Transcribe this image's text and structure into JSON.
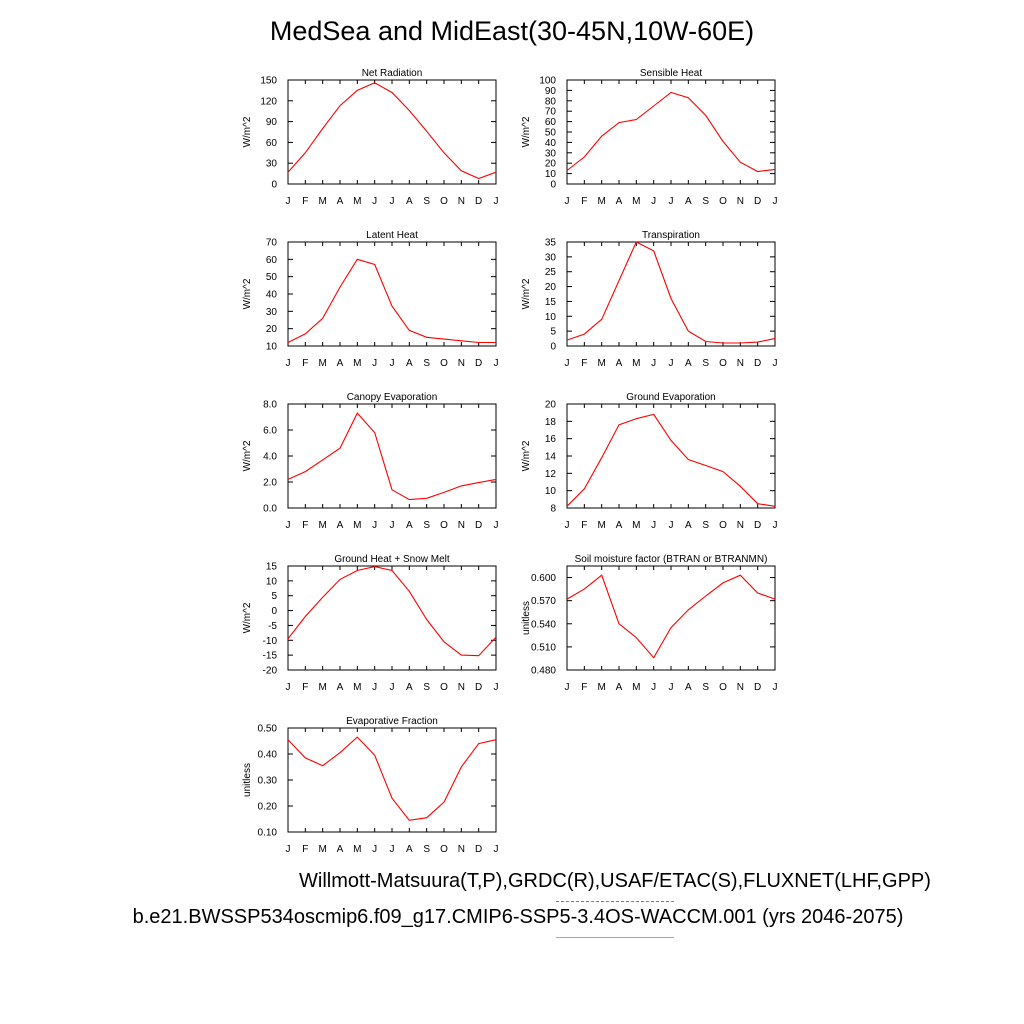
{
  "title": "MedSea and MidEast(30-45N,10W-60E)",
  "footer": {
    "line1": "Willmott-Matsuura(T,P),GRDC(R),USAF/ETAC(S),FLUXNET(LHF,GPP)",
    "line2": "b.e21.BWSSP534oscmip6.f09_g17.CMIP6-SSP5-3.4OS-WACCM.001 (yrs 2046-2075)"
  },
  "colors": {
    "series": "#ff0000",
    "legend_obs": "#7070ff",
    "legend_model": "#ff8080"
  },
  "chart_data": [
    {
      "type": "line",
      "title": "Net Radiation",
      "ylabel": "W/m^2",
      "categories": [
        "J",
        "F",
        "M",
        "A",
        "M",
        "J",
        "J",
        "A",
        "S",
        "O",
        "N",
        "D",
        "J"
      ],
      "ylim": [
        0,
        150
      ],
      "yticks": [
        0,
        30,
        60,
        90,
        120,
        150
      ],
      "yticklabels": [
        "0",
        "30",
        "60",
        "90",
        "120",
        "150"
      ],
      "values": [
        17,
        45,
        80,
        113,
        135,
        146,
        132,
        106,
        76,
        45,
        19,
        8,
        17
      ]
    },
    {
      "type": "line",
      "title": "Sensible Heat",
      "ylabel": "W/m^2",
      "categories": [
        "J",
        "F",
        "M",
        "A",
        "M",
        "J",
        "J",
        "A",
        "S",
        "O",
        "N",
        "D",
        "J"
      ],
      "ylim": [
        0,
        100
      ],
      "yticks": [
        0,
        10,
        20,
        30,
        40,
        50,
        60,
        70,
        80,
        90,
        100
      ],
      "yticklabels": [
        "0",
        "10",
        "20",
        "30",
        "40",
        "50",
        "60",
        "70",
        "80",
        "90",
        "100"
      ],
      "values": [
        13,
        26,
        46,
        59,
        62,
        75,
        88,
        83,
        66,
        41,
        21,
        12,
        14
      ]
    },
    {
      "type": "line",
      "title": "Latent Heat",
      "ylabel": "W/m^2",
      "categories": [
        "J",
        "F",
        "M",
        "A",
        "M",
        "J",
        "J",
        "A",
        "S",
        "O",
        "N",
        "D",
        "J"
      ],
      "ylim": [
        10,
        70
      ],
      "yticks": [
        10,
        20,
        30,
        40,
        50,
        60,
        70
      ],
      "yticklabels": [
        "10",
        "20",
        "30",
        "40",
        "50",
        "60",
        "70"
      ],
      "values": [
        12,
        17,
        26,
        44,
        60,
        57,
        33,
        19,
        15,
        14,
        13,
        12,
        12
      ]
    },
    {
      "type": "line",
      "title": "Transpiration",
      "ylabel": "W/m^2",
      "categories": [
        "J",
        "F",
        "M",
        "A",
        "M",
        "J",
        "J",
        "A",
        "S",
        "O",
        "N",
        "D",
        "J"
      ],
      "ylim": [
        0,
        35
      ],
      "yticks": [
        0,
        5,
        10,
        15,
        20,
        25,
        30,
        35
      ],
      "yticklabels": [
        "0",
        "5",
        "10",
        "15",
        "20",
        "25",
        "30",
        "35"
      ],
      "values": [
        2,
        4,
        9,
        22,
        35,
        32,
        16,
        5,
        1.5,
        1,
        1,
        1.3,
        2.5
      ]
    },
    {
      "type": "line",
      "title": "Canopy Evaporation",
      "ylabel": "W/m^2",
      "categories": [
        "J",
        "F",
        "M",
        "A",
        "M",
        "J",
        "J",
        "A",
        "S",
        "O",
        "N",
        "D",
        "J"
      ],
      "ylim": [
        0,
        8
      ],
      "yticks": [
        0,
        2,
        4,
        6,
        8
      ],
      "yticklabels": [
        "0.0",
        "2.0",
        "4.0",
        "6.0",
        "8.0"
      ],
      "values": [
        2.2,
        2.8,
        3.7,
        4.6,
        7.3,
        5.8,
        1.4,
        0.65,
        0.75,
        1.2,
        1.7,
        1.95,
        2.2
      ]
    },
    {
      "type": "line",
      "title": "Ground Evaporation",
      "ylabel": "W/m^2",
      "categories": [
        "J",
        "F",
        "M",
        "A",
        "M",
        "J",
        "J",
        "A",
        "S",
        "O",
        "N",
        "D",
        "J"
      ],
      "ylim": [
        8,
        20
      ],
      "yticks": [
        8,
        10,
        12,
        14,
        16,
        18,
        20
      ],
      "yticklabels": [
        "8",
        "10",
        "12",
        "14",
        "16",
        "18",
        "20"
      ],
      "values": [
        8.2,
        10.2,
        13.8,
        17.6,
        18.3,
        18.8,
        15.8,
        13.6,
        12.9,
        12.2,
        10.5,
        8.5,
        8.2
      ]
    },
    {
      "type": "line",
      "title": "Ground Heat + Snow Melt",
      "ylabel": "W/m^2",
      "categories": [
        "J",
        "F",
        "M",
        "A",
        "M",
        "J",
        "J",
        "A",
        "S",
        "O",
        "N",
        "D",
        "J"
      ],
      "ylim": [
        -20,
        15
      ],
      "yticks": [
        -20,
        -15,
        -10,
        -5,
        0,
        5,
        10,
        15
      ],
      "yticklabels": [
        "-20",
        "-15",
        "-10",
        "-5",
        "0",
        "5",
        "10",
        "15"
      ],
      "values": [
        -9.5,
        -2,
        4.5,
        10.5,
        13.5,
        14.8,
        13.5,
        6.5,
        -3,
        -10.5,
        -15,
        -15.2,
        -9
      ]
    },
    {
      "type": "line",
      "title": "Soil moisture factor (BTRAN or BTRANMN)",
      "ylabel": "unitless",
      "categories": [
        "J",
        "F",
        "M",
        "A",
        "M",
        "J",
        "J",
        "A",
        "S",
        "O",
        "N",
        "D",
        "J"
      ],
      "ylim": [
        0.48,
        0.615
      ],
      "yticks": [
        0.48,
        0.51,
        0.54,
        0.57,
        0.6
      ],
      "yticklabels": [
        "0.480",
        "0.510",
        "0.540",
        "0.570",
        "0.600"
      ],
      "values": [
        0.572,
        0.585,
        0.603,
        0.54,
        0.522,
        0.496,
        0.535,
        0.558,
        0.576,
        0.593,
        0.603,
        0.58,
        0.572
      ]
    },
    {
      "type": "line",
      "title": "Evaporative Fraction",
      "ylabel": "unitless",
      "categories": [
        "J",
        "F",
        "M",
        "A",
        "M",
        "J",
        "J",
        "A",
        "S",
        "O",
        "N",
        "D",
        "J"
      ],
      "ylim": [
        0.1,
        0.5
      ],
      "yticks": [
        0.1,
        0.2,
        0.3,
        0.4,
        0.5
      ],
      "yticklabels": [
        "0.10",
        "0.20",
        "0.30",
        "0.40",
        "0.50"
      ],
      "values": [
        0.455,
        0.385,
        0.355,
        0.405,
        0.465,
        0.395,
        0.23,
        0.145,
        0.155,
        0.215,
        0.35,
        0.44,
        0.455
      ]
    }
  ]
}
